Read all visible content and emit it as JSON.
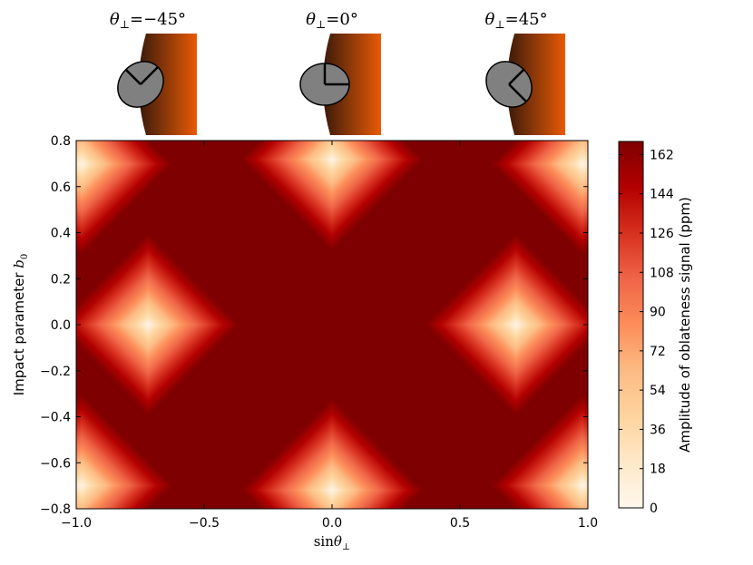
{
  "chart_data": {
    "type": "heatmap",
    "title": "",
    "xlabel": "sin",
    "xlabel_symbol": "θ",
    "xlabel_subscript": "⊥",
    "ylabel": "Impact parameter ",
    "ylabel_symbol": "b",
    "ylabel_subscript": "0",
    "xlim": [
      -1.0,
      1.0
    ],
    "ylim": [
      -0.8,
      0.8
    ],
    "x_ticks": [
      -1.0,
      -0.5,
      0.0,
      0.5,
      1.0
    ],
    "x_tick_labels": [
      "−1.0",
      "−0.5",
      "0.0",
      "0.5",
      "1.0"
    ],
    "y_ticks": [
      0.8,
      0.6,
      0.4,
      0.2,
      0.0,
      -0.2,
      -0.4,
      -0.6,
      -0.8
    ],
    "y_tick_labels": [
      "0.8",
      "0.6",
      "0.4",
      "0.2",
      "0.0",
      "−0.2",
      "−0.4",
      "−0.6",
      "−0.8"
    ],
    "colorbar": {
      "label": "Amplitude of oblateness signal (ppm)",
      "range": [
        0,
        168
      ],
      "ticks": [
        0,
        18,
        36,
        54,
        72,
        90,
        108,
        126,
        144,
        162
      ],
      "tick_labels": [
        "0",
        "18",
        "36",
        "54",
        "72",
        "90",
        "108",
        "126",
        "144",
        "162"
      ],
      "colormap": [
        "#fff7ec",
        "#fee8c8",
        "#fdd49e",
        "#fdbb84",
        "#fc8d59",
        "#ef6548",
        "#d7301f",
        "#b30000",
        "#7f0000"
      ]
    },
    "field_minima": [
      {
        "x": -0.72,
        "y": 0.0
      },
      {
        "x": 0.72,
        "y": 0.0
      },
      {
        "x": 0.0,
        "y": 0.72
      },
      {
        "x": 0.0,
        "y": -0.72
      },
      {
        "x": -0.98,
        "y": 0.7
      },
      {
        "x": 0.98,
        "y": 0.7
      },
      {
        "x": -0.98,
        "y": -0.7
      },
      {
        "x": 0.98,
        "y": -0.7
      }
    ],
    "field_peak_value": 168,
    "insets": [
      {
        "label_symbol": "θ",
        "label_subscript": "⊥",
        "label_value": "=−45°",
        "angle_deg": -45
      },
      {
        "label_symbol": "θ",
        "label_subscript": "⊥",
        "label_value": "=0°",
        "angle_deg": 0
      },
      {
        "label_symbol": "θ",
        "label_subscript": "⊥",
        "label_value": "=45°",
        "angle_deg": 45
      }
    ],
    "colors": {
      "planet_fill": "#808080",
      "star_dark": "#3a1a0a",
      "star_light": "#e85a05"
    }
  }
}
